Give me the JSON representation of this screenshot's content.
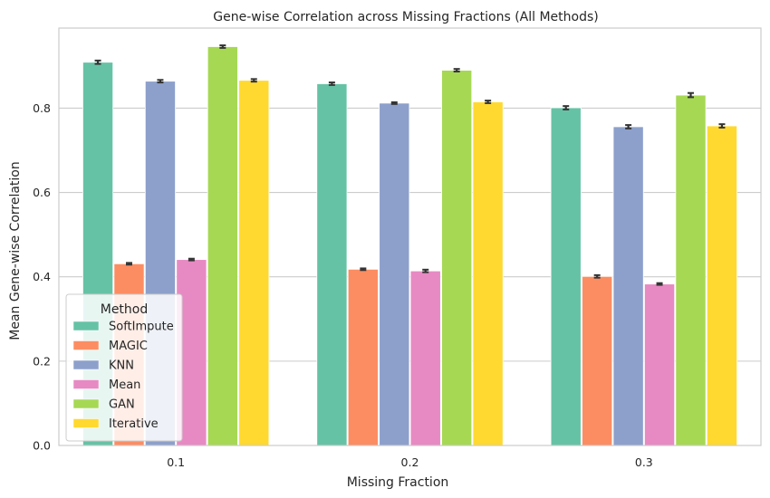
{
  "chart_data": {
    "type": "bar",
    "title": "Gene-wise Correlation across Missing Fractions (All Methods)",
    "xlabel": "Missing Fraction",
    "ylabel": "Mean Gene-wise Correlation",
    "categories": [
      "0.1",
      "0.2",
      "0.3"
    ],
    "ylim": [
      0,
      0.99
    ],
    "yticks": [
      0.0,
      0.2,
      0.4,
      0.6,
      0.8
    ],
    "ytick_labels": [
      "0.0",
      "0.2",
      "0.4",
      "0.6",
      "0.8"
    ],
    "grid": true,
    "legend": {
      "title": "Method",
      "placement": "lower-left"
    },
    "series": [
      {
        "name": "SoftImpute",
        "color": "#66c2a5",
        "values": [
          0.909,
          0.858,
          0.801
        ],
        "errors": [
          0.004,
          0.003,
          0.004
        ]
      },
      {
        "name": "MAGIC",
        "color": "#fc8d62",
        "values": [
          0.431,
          0.418,
          0.401
        ],
        "errors": [
          0.002,
          0.002,
          0.003
        ]
      },
      {
        "name": "KNN",
        "color": "#8da0cb",
        "values": [
          0.864,
          0.812,
          0.756
        ],
        "errors": [
          0.003,
          0.002,
          0.004
        ]
      },
      {
        "name": "Mean",
        "color": "#e78ac3",
        "values": [
          0.441,
          0.414,
          0.383
        ],
        "errors": [
          0.002,
          0.003,
          0.002
        ]
      },
      {
        "name": "GAN",
        "color": "#a6d854",
        "values": [
          0.946,
          0.89,
          0.831
        ],
        "errors": [
          0.003,
          0.003,
          0.005
        ]
      },
      {
        "name": "Iterative",
        "color": "#ffd92f",
        "values": [
          0.866,
          0.815,
          0.758
        ],
        "errors": [
          0.003,
          0.003,
          0.004
        ]
      }
    ],
    "errorbar_color": "#333333"
  }
}
